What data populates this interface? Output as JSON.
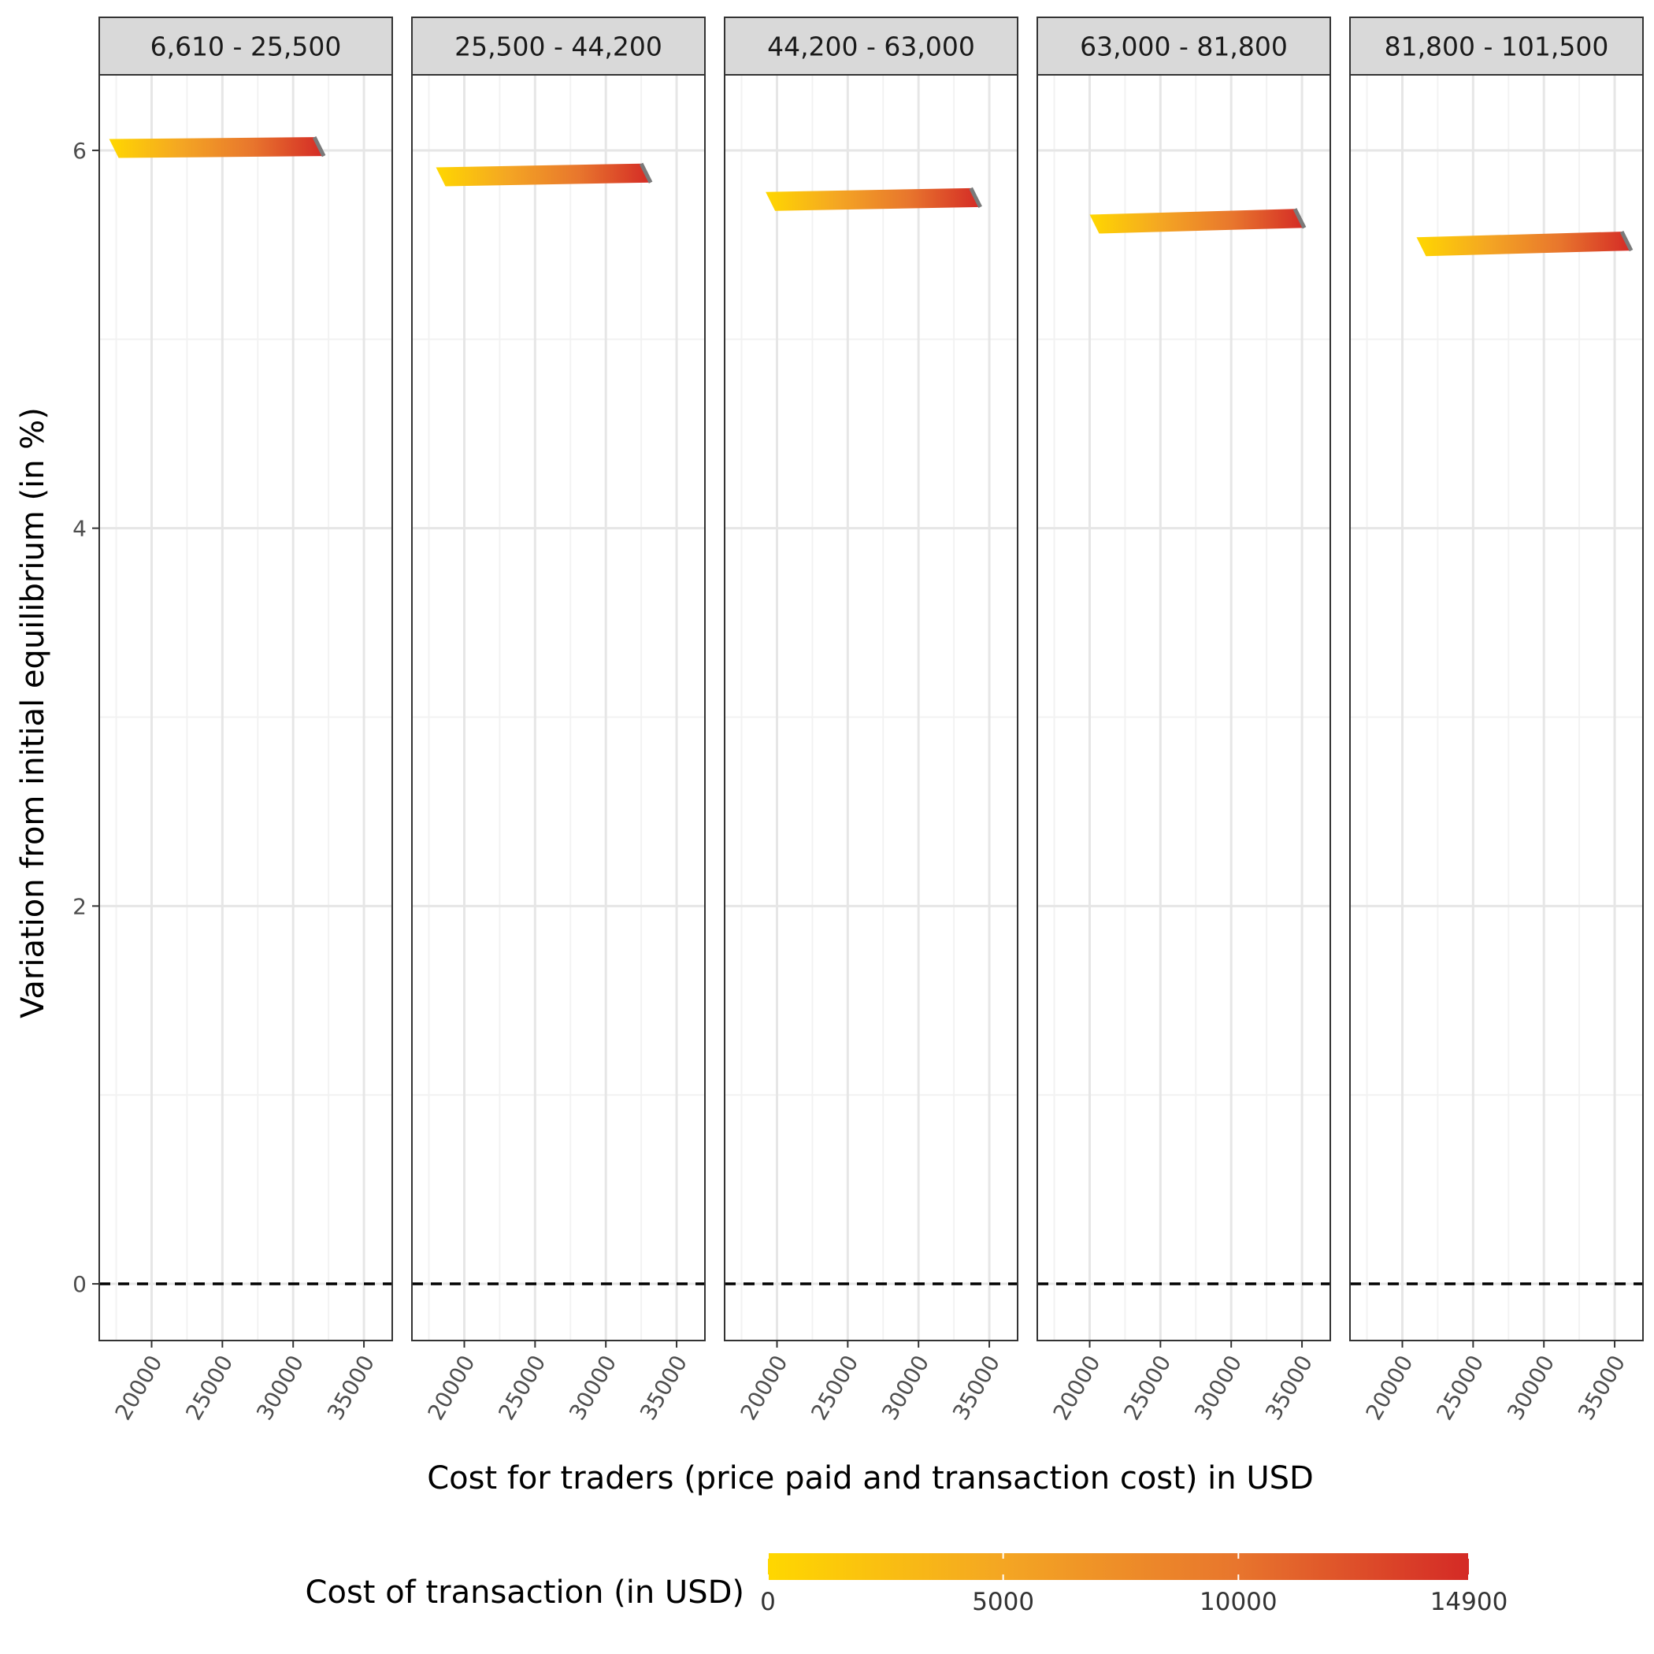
{
  "chart_data": {
    "type": "line",
    "facet_labels": [
      "6,610 - 25,500",
      "25,500 - 44,200",
      "44,200 - 63,000",
      "63,000 - 81,800",
      "81,800 - 101,500"
    ],
    "xlabel": "Cost for traders (price paid and transaction cost) in USD",
    "ylabel": "Variation from initial equilibrium (in %)",
    "x_ticks": [
      20000,
      25000,
      30000,
      35000
    ],
    "y_ticks": [
      0,
      2,
      4,
      6
    ],
    "xlim": [
      16300,
      37000
    ],
    "ylim": [
      -0.3,
      6.4
    ],
    "grid": true,
    "reference_line": {
      "y": 0,
      "style": "dashed"
    },
    "color_scale": {
      "title": "Cost of transaction (in USD)",
      "min": 0,
      "max": 14900,
      "ticks": [
        0,
        5000,
        10000,
        14900
      ],
      "colors": [
        "#ffd700",
        "#f4a623",
        "#e8762d",
        "#d42a26"
      ]
    },
    "series": [
      {
        "facet": "6,610 - 25,500",
        "x_start": 17000,
        "x_end": 31500,
        "y_start": 6.01,
        "y_end": 6.02
      },
      {
        "facet": "25,500 - 44,200",
        "x_start": 18000,
        "x_end": 32500,
        "y_start": 5.86,
        "y_end": 5.88
      },
      {
        "facet": "44,200 - 63,000",
        "x_start": 19200,
        "x_end": 33700,
        "y_start": 5.73,
        "y_end": 5.75
      },
      {
        "facet": "63,000 - 81,800",
        "x_start": 20000,
        "x_end": 34500,
        "y_start": 5.61,
        "y_end": 5.64
      },
      {
        "facet": "81,800 - 101,500",
        "x_start": 21000,
        "x_end": 35500,
        "y_start": 5.49,
        "y_end": 5.52
      }
    ]
  }
}
